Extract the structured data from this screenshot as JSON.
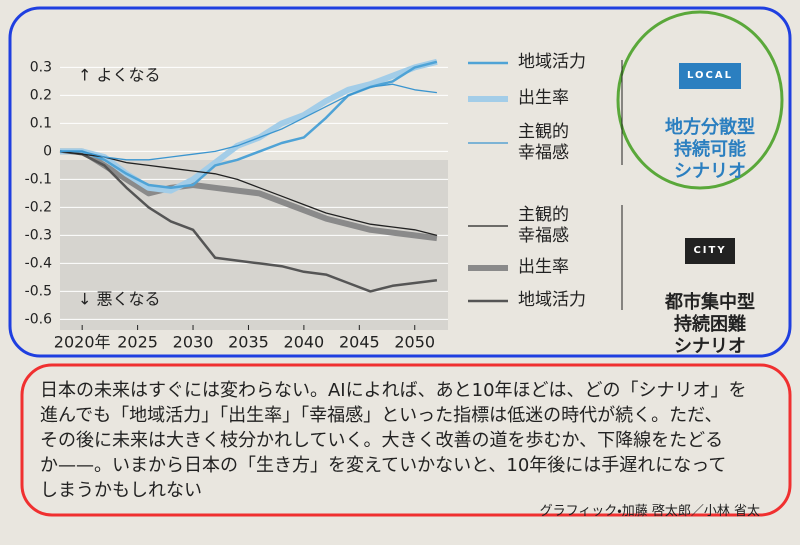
{
  "chart_data": {
    "type": "line",
    "x": [
      2018,
      2020,
      2022,
      2024,
      2026,
      2028,
      2030,
      2032,
      2034,
      2036,
      2038,
      2040,
      2042,
      2044,
      2046,
      2048,
      2050,
      2052
    ],
    "xlim": [
      2018,
      2053
    ],
    "xticks": [
      {
        "value": 2020,
        "label": "2020年"
      },
      2025,
      2030,
      2035,
      2040,
      2045,
      2050
    ],
    "ylim": [
      -0.62,
      0.38
    ],
    "yticks": [
      0.3,
      0.2,
      0.1,
      0,
      -0.1,
      -0.2,
      -0.3,
      -0.4,
      -0.5,
      -0.6
    ],
    "annotations": [
      "↑ よくなる",
      "↓ 悪くなる"
    ],
    "series": [
      {
        "name": "地域活力",
        "color": "#4fa3d6",
        "line_width": 2.5,
        "values": [
          0,
          0,
          -0.03,
          -0.08,
          -0.12,
          -0.13,
          -0.12,
          -0.05,
          -0.03,
          0,
          0.03,
          0.05,
          0.12,
          0.2,
          0.23,
          0.25,
          0.3,
          0.32
        ]
      },
      {
        "name": "出生率",
        "color": "#a3cde8",
        "line_width": 6,
        "values": [
          0,
          0,
          -0.02,
          -0.08,
          -0.13,
          -0.14,
          -0.1,
          -0.04,
          0.02,
          0.05,
          0.1,
          0.13,
          0.18,
          0.22,
          0.24,
          0.27,
          0.3,
          0.32
        ]
      },
      {
        "name": "主観的\n幸福感",
        "color": "#3b95cf",
        "line_width": 1.3,
        "values": [
          0,
          0,
          -0.02,
          -0.03,
          -0.03,
          -0.02,
          -0.01,
          0,
          0.02,
          0.05,
          0.08,
          0.12,
          0.16,
          0.2,
          0.23,
          0.24,
          0.22,
          0.21
        ]
      },
      {
        "name": "主観的\n幸福感",
        "color": "#222222",
        "line_width": 1.3,
        "values": [
          0,
          -0.01,
          -0.02,
          -0.04,
          -0.05,
          -0.06,
          -0.07,
          -0.08,
          -0.1,
          -0.13,
          -0.16,
          -0.19,
          -0.22,
          -0.24,
          -0.26,
          -0.27,
          -0.28,
          -0.3
        ]
      },
      {
        "name": "出生率",
        "color": "#8a8a8a",
        "line_width": 6,
        "values": [
          0,
          0,
          -0.05,
          -0.1,
          -0.15,
          -0.13,
          -0.12,
          -0.13,
          -0.14,
          -0.15,
          -0.18,
          -0.21,
          -0.24,
          -0.26,
          -0.28,
          -0.29,
          -0.3,
          -0.31
        ]
      },
      {
        "name": "地域活力",
        "color": "#555555",
        "line_width": 2.5,
        "values": [
          0,
          -0.01,
          -0.05,
          -0.13,
          -0.2,
          -0.25,
          -0.28,
          -0.38,
          -0.39,
          -0.4,
          -0.41,
          -0.43,
          -0.44,
          -0.47,
          -0.5,
          -0.48,
          -0.47,
          -0.46
        ]
      }
    ]
  },
  "scenarios": [
    {
      "badge": "LOCAL",
      "label": "地方分散型\n持続可能\nシナリオ"
    },
    {
      "badge": "CITY",
      "label": "都市集中型\n持続困難\nシナリオ"
    }
  ],
  "article": {
    "lines": [
      "日本の未来はすぐには変わらない。AIによれば、あと10年ほどは、どの「シナリオ」を",
      "進んでも「地域活力」「出生率」「幸福感」といった指標は低迷の時代が続く。ただ、",
      "その後に未来は大きく枝分かれしていく。大きく改善の道を歩むか、下降線をたどる",
      "か——。いまから日本の「生き方」を変えていかないと、10年後には手遅れになって",
      "しまうかもしれない"
    ],
    "credit": "グラフィック・加藤 啓太郎／小林 省太"
  }
}
